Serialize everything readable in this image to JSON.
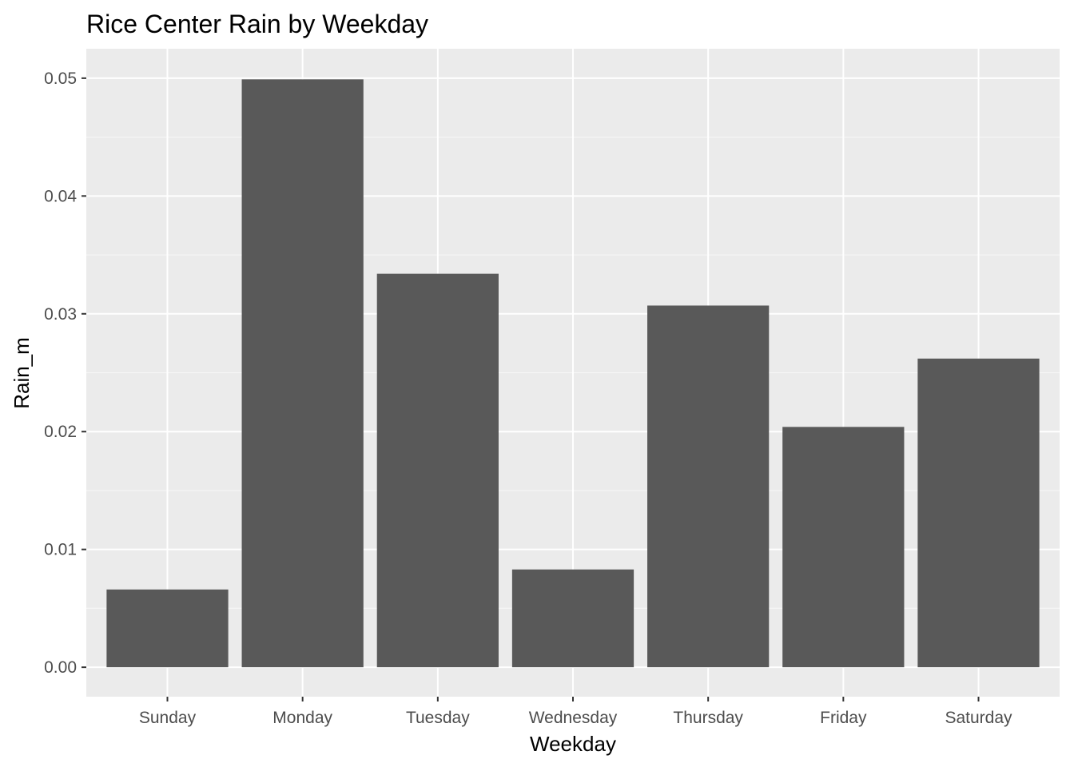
{
  "chart_data": {
    "type": "bar",
    "title": "Rice Center Rain by Weekday",
    "xlabel": "Weekday",
    "ylabel": "Rain_m",
    "categories": [
      "Sunday",
      "Monday",
      "Tuesday",
      "Wednesday",
      "Thursday",
      "Friday",
      "Saturday"
    ],
    "values": [
      0.0066,
      0.0499,
      0.0334,
      0.0083,
      0.0307,
      0.0204,
      0.0262
    ],
    "ylim": [
      -0.0025,
      0.0525
    ],
    "yticks": [
      0.0,
      0.01,
      0.02,
      0.03,
      0.04,
      0.05
    ],
    "ytick_labels": [
      "0.00",
      "0.01",
      "0.02",
      "0.03",
      "0.04",
      "0.05"
    ],
    "grid": true,
    "legend": "none",
    "colors": {
      "bar": "#595959",
      "panel_background": "#ebebeb",
      "grid_major": "#ffffff",
      "grid_minor": "#f5f5f5",
      "tick_text": "#4d4d4d",
      "tick_mark": "#333333"
    }
  }
}
